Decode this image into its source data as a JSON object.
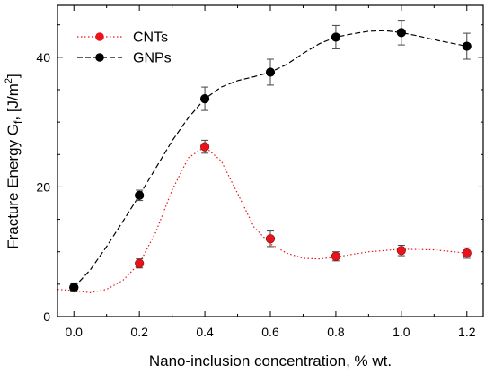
{
  "chart_data": {
    "type": "line",
    "title": "",
    "xlabel": "Nano-inclusion concentration, % wt.",
    "ylabel": {
      "main": "Fracture Energy G",
      "sub": "f",
      "unit": ", [J/m",
      "sup": "2",
      "close": "]"
    },
    "xlim": [
      -0.05,
      1.25
    ],
    "ylim": [
      0,
      48
    ],
    "x_ticks": [
      0.0,
      0.2,
      0.4,
      0.6,
      0.8,
      1.0,
      1.2
    ],
    "x_tick_labels": [
      "0.0",
      "0.2",
      "0.4",
      "0.6",
      "0.8",
      "1.0",
      "1.2"
    ],
    "y_ticks": [
      0,
      20,
      40
    ],
    "y_tick_labels": [
      "0",
      "20",
      "40"
    ],
    "y_minor_step": 5,
    "x_minor_step": 0.1,
    "grid": false,
    "legend_position": "top-left",
    "series": [
      {
        "name": "CNTs",
        "color": "#e8141b",
        "line_style": "dotted",
        "x": [
          0.0,
          0.2,
          0.4,
          0.6,
          0.8,
          1.0,
          1.2
        ],
        "y": [
          4.5,
          8.2,
          26.2,
          12.0,
          9.3,
          10.2,
          9.8
        ],
        "err": [
          0.6,
          0.7,
          1.0,
          1.2,
          0.7,
          0.8,
          0.8
        ],
        "curve_fit": [
          [
            -0.05,
            4.2
          ],
          [
            0.0,
            4.0
          ],
          [
            0.05,
            3.7
          ],
          [
            0.1,
            4.2
          ],
          [
            0.15,
            5.6
          ],
          [
            0.2,
            8.2
          ],
          [
            0.25,
            13.0
          ],
          [
            0.3,
            19.5
          ],
          [
            0.35,
            24.5
          ],
          [
            0.4,
            26.2
          ],
          [
            0.45,
            24.0
          ],
          [
            0.5,
            19.0
          ],
          [
            0.55,
            13.8
          ],
          [
            0.6,
            11.2
          ],
          [
            0.65,
            9.8
          ],
          [
            0.7,
            9.0
          ],
          [
            0.75,
            8.9
          ],
          [
            0.8,
            9.2
          ],
          [
            0.9,
            10.0
          ],
          [
            1.0,
            10.4
          ],
          [
            1.1,
            10.3
          ],
          [
            1.2,
            9.8
          ]
        ]
      },
      {
        "name": "GNPs",
        "color": "#000000",
        "line_style": "dashed",
        "x": [
          0.0,
          0.2,
          0.4,
          0.6,
          0.8,
          1.0,
          1.2
        ],
        "y": [
          4.5,
          18.7,
          33.6,
          37.7,
          43.1,
          43.8,
          41.7
        ],
        "err": [
          0.7,
          0.8,
          1.8,
          2.0,
          1.8,
          1.9,
          2.0
        ],
        "curve_fit": [
          [
            0.0,
            4.5
          ],
          [
            0.05,
            7.2
          ],
          [
            0.1,
            10.8
          ],
          [
            0.15,
            14.7
          ],
          [
            0.2,
            18.7
          ],
          [
            0.25,
            22.9
          ],
          [
            0.3,
            27.1
          ],
          [
            0.35,
            30.7
          ],
          [
            0.4,
            33.6
          ],
          [
            0.45,
            35.4
          ],
          [
            0.5,
            36.4
          ],
          [
            0.55,
            37.0
          ],
          [
            0.6,
            37.7
          ],
          [
            0.65,
            38.9
          ],
          [
            0.7,
            40.6
          ],
          [
            0.75,
            42.1
          ],
          [
            0.8,
            43.1
          ],
          [
            0.85,
            43.6
          ],
          [
            0.9,
            44.0
          ],
          [
            0.95,
            44.1
          ],
          [
            1.0,
            43.8
          ],
          [
            1.05,
            43.3
          ],
          [
            1.1,
            42.7
          ],
          [
            1.15,
            42.2
          ],
          [
            1.2,
            41.7
          ]
        ]
      }
    ]
  }
}
